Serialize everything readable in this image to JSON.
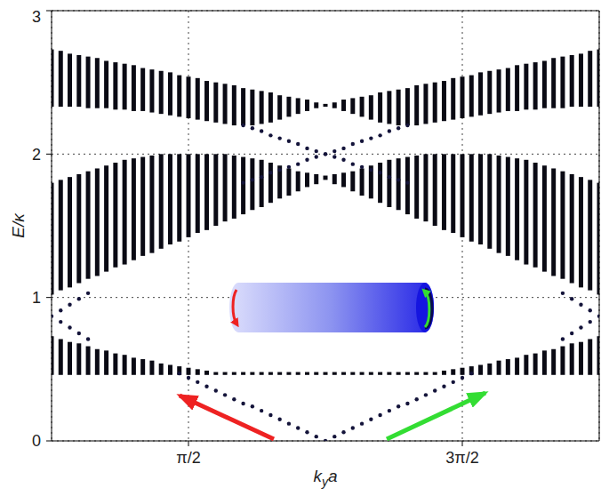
{
  "chart_data": {
    "type": "scatter",
    "xlabel": "kya",
    "ylabel": "E/κ",
    "xlim": [
      0,
      6.2832
    ],
    "xticks": [
      {
        "value": 1.5708,
        "label": "π/2"
      },
      {
        "value": 4.7124,
        "label": "3π/2"
      }
    ],
    "ylim": [
      0,
      3
    ],
    "yticks": [
      0,
      1,
      2,
      3
    ],
    "grid": true,
    "x": [
      0,
      0.1047,
      0.2094,
      0.3142,
      0.4189,
      0.5236,
      0.6283,
      0.733,
      0.8378,
      0.9425,
      1.0472,
      1.1519,
      1.2566,
      1.3614,
      1.4661,
      1.5708,
      1.6755,
      1.7802,
      1.885,
      1.9897,
      2.0944,
      2.1991,
      2.3038,
      2.4086,
      2.5133,
      2.618,
      2.7227,
      2.8274,
      2.9322,
      3.0369,
      3.1416,
      3.2463,
      3.351,
      3.4558,
      3.5605,
      3.6652,
      3.7699,
      3.8746,
      3.9794,
      4.0841,
      4.1888,
      4.2935,
      4.3982,
      4.5029,
      4.6077,
      4.7124,
      4.8171,
      4.9218,
      5.0265,
      5.1313,
      5.236,
      5.3407,
      5.4454,
      5.5501,
      5.6549,
      5.7596,
      5.8643,
      5.969,
      6.0737,
      6.1785,
      6.2832
    ],
    "series": [
      {
        "type": "range",
        "color": "#0a0a14",
        "low": [
          0.46,
          0.46,
          0.46,
          0.46,
          0.46,
          0.46,
          0.46,
          0.46,
          0.46,
          0.46,
          0.46,
          0.46,
          0.46,
          0.46,
          0.46,
          0.46,
          0.46,
          0.46,
          0.46,
          0.46,
          0.46,
          0.46,
          0.46,
          0.46,
          0.46,
          0.46,
          0.46,
          0.46,
          0.46,
          0.46,
          0.46,
          0.46,
          0.46,
          0.46,
          0.46,
          0.46,
          0.46,
          0.46,
          0.46,
          0.46,
          0.46,
          0.46,
          0.46,
          0.46,
          0.46,
          0.46,
          0.46,
          0.46,
          0.46,
          0.46,
          0.46,
          0.46,
          0.46,
          0.46,
          0.46,
          0.46,
          0.46,
          0.46,
          0.46,
          0.46,
          0.46
        ],
        "high": [
          0.73,
          0.71,
          0.69,
          0.68,
          0.66,
          0.64,
          0.63,
          0.61,
          0.6,
          0.58,
          0.57,
          0.56,
          0.54,
          0.53,
          0.52,
          0.51,
          0.5,
          0.49,
          0.48,
          0.48,
          0.48,
          0.48,
          0.48,
          0.48,
          0.48,
          0.48,
          0.48,
          0.48,
          0.48,
          0.48,
          0.48,
          0.48,
          0.48,
          0.48,
          0.48,
          0.48,
          0.48,
          0.48,
          0.48,
          0.48,
          0.48,
          0.48,
          0.48,
          0.49,
          0.5,
          0.51,
          0.52,
          0.53,
          0.54,
          0.56,
          0.57,
          0.58,
          0.6,
          0.61,
          0.63,
          0.64,
          0.66,
          0.68,
          0.69,
          0.71,
          0.73
        ]
      },
      {
        "type": "range",
        "color": "#0a0a14",
        "low": [
          1.02,
          1.05,
          1.07,
          1.1,
          1.13,
          1.15,
          1.18,
          1.21,
          1.23,
          1.26,
          1.29,
          1.31,
          1.34,
          1.37,
          1.39,
          1.42,
          1.45,
          1.47,
          1.5,
          1.53,
          1.55,
          1.58,
          1.61,
          1.63,
          1.66,
          1.69,
          1.71,
          1.74,
          1.77,
          1.79,
          1.82,
          1.79,
          1.77,
          1.74,
          1.71,
          1.69,
          1.66,
          1.63,
          1.61,
          1.58,
          1.55,
          1.53,
          1.5,
          1.47,
          1.45,
          1.42,
          1.39,
          1.37,
          1.34,
          1.31,
          1.29,
          1.26,
          1.23,
          1.21,
          1.18,
          1.15,
          1.13,
          1.1,
          1.07,
          1.05,
          1.02
        ],
        "high": [
          1.8,
          1.82,
          1.84,
          1.86,
          1.88,
          1.9,
          1.92,
          1.94,
          1.96,
          1.97,
          1.98,
          1.99,
          2,
          2,
          2,
          2,
          2,
          2,
          2,
          2,
          1.99,
          1.98,
          1.97,
          1.96,
          1.94,
          1.92,
          1.9,
          1.88,
          1.87,
          1.86,
          1.85,
          1.86,
          1.87,
          1.88,
          1.9,
          1.92,
          1.94,
          1.96,
          1.97,
          1.98,
          1.99,
          2,
          2,
          2,
          2,
          2,
          2,
          2,
          2,
          1.99,
          1.98,
          1.97,
          1.96,
          1.94,
          1.92,
          1.9,
          1.88,
          1.86,
          1.84,
          1.82,
          1.8
        ]
      },
      {
        "type": "range",
        "color": "#0a0a14",
        "low": [
          2.33,
          2.33,
          2.33,
          2.33,
          2.32,
          2.32,
          2.32,
          2.31,
          2.31,
          2.3,
          2.3,
          2.29,
          2.28,
          2.27,
          2.26,
          2.25,
          2.24,
          2.23,
          2.22,
          2.21,
          2.2,
          2.2,
          2.2,
          2.21,
          2.22,
          2.24,
          2.26,
          2.28,
          2.3,
          2.32,
          2.33,
          2.32,
          2.3,
          2.28,
          2.26,
          2.24,
          2.22,
          2.21,
          2.2,
          2.2,
          2.2,
          2.21,
          2.22,
          2.23,
          2.24,
          2.25,
          2.26,
          2.27,
          2.28,
          2.29,
          2.3,
          2.3,
          2.31,
          2.31,
          2.32,
          2.32,
          2.32,
          2.33,
          2.33,
          2.33,
          2.33
        ],
        "high": [
          2.73,
          2.72,
          2.7,
          2.69,
          2.68,
          2.67,
          2.65,
          2.64,
          2.63,
          2.62,
          2.6,
          2.59,
          2.58,
          2.57,
          2.55,
          2.54,
          2.53,
          2.51,
          2.5,
          2.49,
          2.48,
          2.46,
          2.45,
          2.44,
          2.43,
          2.41,
          2.4,
          2.39,
          2.38,
          2.36,
          2.35,
          2.36,
          2.38,
          2.39,
          2.4,
          2.41,
          2.43,
          2.44,
          2.45,
          2.46,
          2.48,
          2.49,
          2.5,
          2.51,
          2.53,
          2.54,
          2.55,
          2.57,
          2.58,
          2.59,
          2.6,
          2.62,
          2.63,
          2.64,
          2.65,
          2.67,
          2.68,
          2.69,
          2.7,
          2.72,
          2.73
        ]
      },
      {
        "type": "scatter",
        "marker": "dot",
        "color": "#14143a",
        "x": [
          1.4661,
          1.5708,
          1.6755,
          1.7802,
          1.885,
          1.9897,
          2.0944,
          2.1991,
          2.3038,
          2.4086,
          2.5133,
          2.618,
          2.7227,
          2.8274,
          2.9322,
          3.0369,
          3.1416,
          3.2463,
          3.351,
          3.4558,
          3.5605,
          3.6652,
          3.7699,
          3.8746,
          3.9794,
          4.0841,
          4.1888,
          4.2935,
          4.3982,
          4.5029,
          4.6077,
          4.7124,
          4.8171
        ],
        "values": [
          0.47,
          0.44,
          0.41,
          0.38,
          0.35,
          0.32,
          0.29,
          0.26,
          0.24,
          0.21,
          0.18,
          0.15,
          0.12,
          0.09,
          0.06,
          0.03,
          0,
          0.03,
          0.06,
          0.09,
          0.12,
          0.15,
          0.18,
          0.21,
          0.24,
          0.26,
          0.29,
          0.32,
          0.35,
          0.38,
          0.41,
          0.44,
          0.47
        ]
      },
      {
        "type": "scatter",
        "marker": "dot",
        "color": "#14143a",
        "x": [
          2.1991,
          2.3038,
          2.4086,
          2.5133,
          2.618,
          2.7227,
          2.8274,
          2.9322,
          3.0369,
          3.1416,
          3.2463,
          3.351,
          3.4558,
          3.5605,
          3.6652,
          3.7699,
          3.8746,
          3.9794,
          4.0841,
          2.1991,
          2.3038,
          2.4086,
          2.5133,
          2.618,
          2.7227,
          2.8274,
          2.9322,
          3.0369,
          3.1416,
          3.2463,
          3.351,
          3.4558,
          3.5605,
          3.6652,
          3.7699,
          3.8746,
          3.9794,
          4.0841
        ],
        "values": [
          2.2,
          2.18,
          2.16,
          2.13,
          2.11,
          2.09,
          2.07,
          2.04,
          2.02,
          2,
          1.98,
          1.96,
          1.93,
          1.91,
          1.89,
          1.87,
          1.84,
          1.82,
          1.8,
          1.8,
          1.82,
          1.84,
          1.87,
          1.89,
          1.91,
          1.93,
          1.96,
          1.98,
          2,
          2.02,
          2.04,
          2.07,
          2.09,
          2.11,
          2.13,
          2.16,
          2.18,
          2.2
        ]
      },
      {
        "type": "scatter",
        "marker": "dot",
        "color": "#14143a",
        "x": [
          0,
          0.1047,
          0.2094,
          0.3142,
          0.4189,
          0.1047,
          0.2094,
          0.3142,
          0.4189,
          5.8643,
          5.969,
          6.0737,
          6.1785,
          6.2832,
          5.8643,
          5.969,
          6.0737,
          6.1785
        ],
        "values": [
          0.87,
          0.91,
          0.95,
          0.99,
          1.03,
          0.83,
          0.79,
          0.75,
          0.71,
          1.03,
          0.99,
          0.95,
          0.91,
          0.87,
          0.71,
          0.75,
          0.79,
          0.83
        ]
      }
    ]
  }
}
